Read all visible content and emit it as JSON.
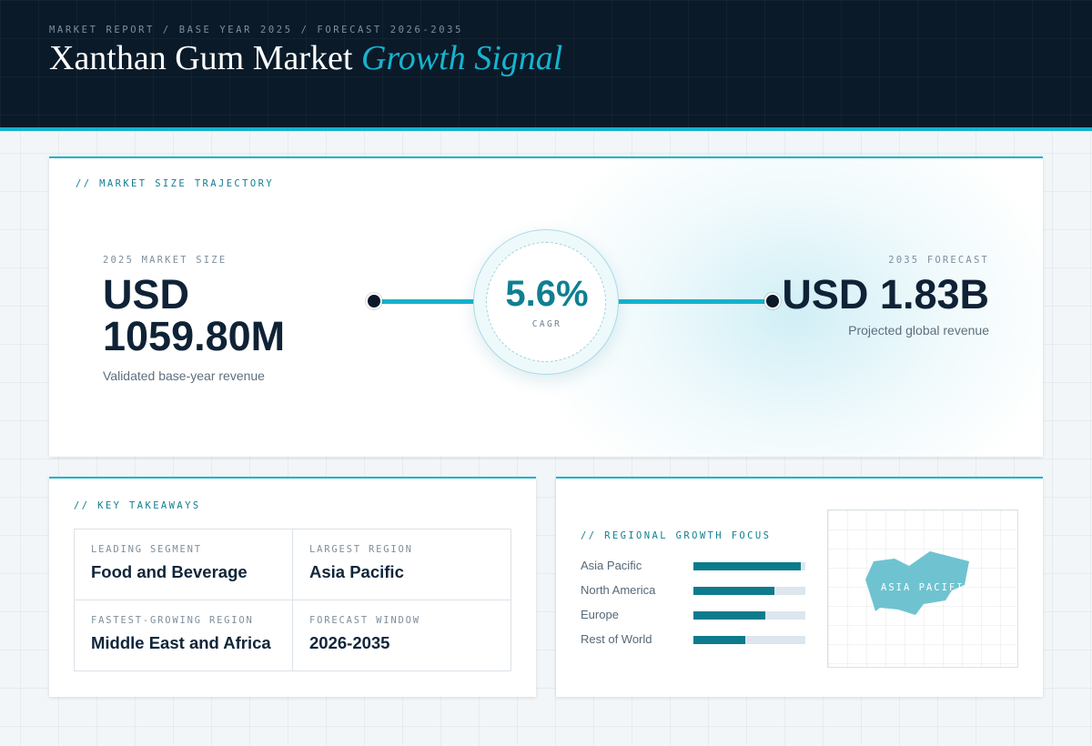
{
  "header": {
    "eyebrow": "MARKET REPORT / BASE YEAR 2025 / FORECAST 2026-2035",
    "title_main": "Xanthan Gum Market",
    "title_accent": "Growth Signal"
  },
  "trajectory": {
    "label": "// MARKET SIZE TRAJECTORY",
    "base": {
      "label": "2025 MARKET SIZE",
      "value_line1": "USD",
      "value_line2": "1059.80M",
      "subtitle": "Validated base-year revenue"
    },
    "cagr": {
      "value": "5.6%",
      "label": "CAGR"
    },
    "forecast": {
      "label": "2035 FORECAST",
      "value": "USD 1.83B",
      "subtitle": "Projected global revenue"
    }
  },
  "takeaways": {
    "label": "// KEY TAKEAWAYS",
    "items": [
      {
        "label": "LEADING SEGMENT",
        "value": "Food and Beverage"
      },
      {
        "label": "LARGEST REGION",
        "value": "Asia Pacific"
      },
      {
        "label": "FASTEST-GROWING REGION",
        "value": "Middle East and Africa"
      },
      {
        "label": "FORECAST WINDOW",
        "value": "2026-2035"
      }
    ]
  },
  "regional": {
    "label": "// REGIONAL GROWTH FOCUS",
    "regions": [
      {
        "name": "Asia Pacific",
        "share": 0.96
      },
      {
        "name": "North America",
        "share": 0.72
      },
      {
        "name": "Europe",
        "share": 0.64
      },
      {
        "name": "Rest of World",
        "share": 0.46
      }
    ],
    "map_label": "ASIA PACIFIC"
  },
  "colors": {
    "accent": "#15b2cc",
    "accent_dark": "#0d7b8c",
    "navy": "#0a1a29",
    "map_fill": "#6fc3d0"
  }
}
